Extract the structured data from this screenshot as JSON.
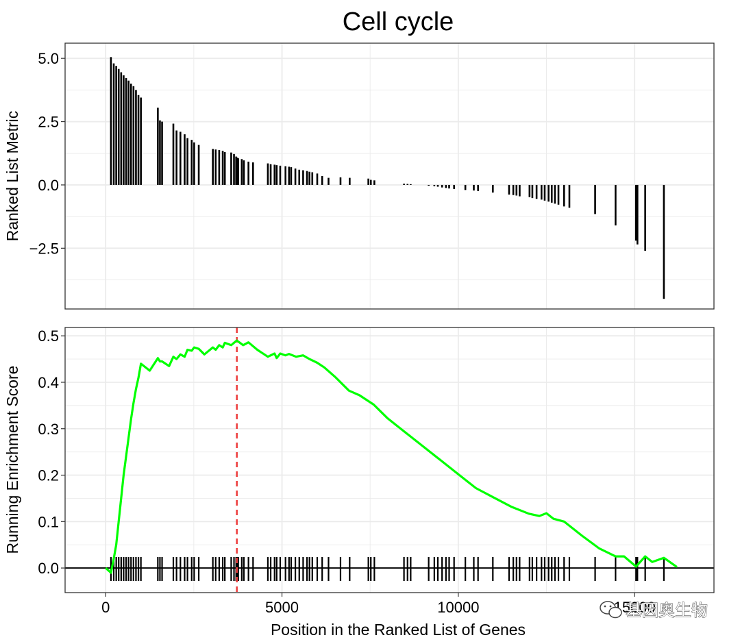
{
  "title": "Cell cycle",
  "watermark": "基因奥生物",
  "colors": {
    "running_line": "#00ff00",
    "peak_line": "#ee4040",
    "bars": "#000000",
    "grid": "#ebebeb",
    "panel_border": "#333333"
  },
  "chart_data": [
    {
      "type": "bar",
      "panel": "top",
      "title": "Cell cycle",
      "ylabel": "Ranked List Metric",
      "xlabel": "",
      "xlim": [
        -1150,
        17250
      ],
      "ylim": [
        -4.9,
        5.6
      ],
      "yticks": [
        -2.5,
        0,
        2.5,
        5
      ],
      "ytick_labels": [
        "−2.5",
        "0.0",
        "2.5",
        "5.0"
      ],
      "xgrid": [
        0,
        5000,
        10000,
        15000
      ],
      "x": [
        150,
        230,
        300,
        370,
        440,
        510,
        580,
        650,
        720,
        790,
        860,
        930,
        1000,
        1480,
        1540,
        1600,
        1920,
        2010,
        2120,
        2240,
        2320,
        2440,
        2510,
        2640,
        3040,
        3120,
        3220,
        3320,
        3380,
        3560,
        3640,
        3700,
        3730,
        3760,
        3860,
        3920,
        4050,
        4180,
        4600,
        4680,
        4790,
        4850,
        4950,
        5100,
        5200,
        5260,
        5380,
        5490,
        5600,
        5710,
        5780,
        5860,
        6000,
        6140,
        6320,
        6660,
        6920,
        7450,
        7520,
        7620,
        8460,
        8560,
        8650,
        9160,
        9320,
        9420,
        9540,
        9650,
        9740,
        9880,
        10200,
        10440,
        10560,
        10980,
        11440,
        11560,
        11650,
        11740,
        12020,
        12100,
        12220,
        12360,
        12450,
        12560,
        12650,
        12740,
        12840,
        13000,
        13150,
        13880,
        14460,
        15040,
        15080,
        15300,
        15830
      ],
      "values": [
        5.05,
        4.8,
        4.7,
        4.58,
        4.45,
        4.33,
        4.22,
        4.12,
        4.0,
        3.9,
        3.75,
        3.55,
        3.45,
        3.05,
        2.55,
        2.5,
        2.42,
        2.15,
        2.1,
        2.0,
        1.85,
        1.78,
        1.68,
        1.58,
        1.42,
        1.4,
        1.38,
        1.35,
        1.3,
        1.28,
        1.22,
        1.12,
        1.08,
        1.05,
        1.02,
        0.97,
        0.92,
        0.89,
        0.85,
        0.82,
        0.8,
        0.78,
        0.76,
        0.74,
        0.72,
        0.7,
        0.65,
        0.6,
        0.58,
        0.55,
        0.52,
        0.5,
        0.45,
        0.35,
        0.28,
        0.3,
        0.28,
        0.25,
        0.2,
        0.18,
        0.05,
        0.04,
        0.03,
        -0.03,
        -0.05,
        -0.07,
        -0.1,
        -0.12,
        -0.14,
        -0.16,
        -0.2,
        -0.22,
        -0.24,
        -0.3,
        -0.38,
        -0.4,
        -0.42,
        -0.45,
        -0.48,
        -0.52,
        -0.55,
        -0.58,
        -0.62,
        -0.66,
        -0.7,
        -0.74,
        -0.78,
        -0.85,
        -0.9,
        -1.15,
        -1.6,
        -2.2,
        -2.35,
        -2.6,
        -4.5
      ]
    },
    {
      "type": "line",
      "panel": "bottom",
      "title": "",
      "ylabel": "Running Enrichment Score",
      "xlabel": "Position in the Ranked List of Genes",
      "xlim": [
        -1150,
        17250
      ],
      "ylim": [
        -0.053,
        0.518
      ],
      "yticks": [
        0,
        0.1,
        0.2,
        0.3,
        0.4,
        0.5
      ],
      "ytick_labels": [
        "0.0",
        "0.1",
        "0.2",
        "0.3",
        "0.4",
        "0.5"
      ],
      "xticks": [
        0,
        5000,
        10000,
        15000
      ],
      "xtick_labels": [
        "0",
        "5000",
        "10000",
        "15000"
      ],
      "peak_x": 3720,
      "series": [
        {
          "name": "Running Enrichment Score",
          "x": [
            0,
            150,
            230,
            300,
            370,
            440,
            510,
            580,
            650,
            720,
            790,
            860,
            930,
            1000,
            1250,
            1480,
            1540,
            1600,
            1800,
            1920,
            2010,
            2120,
            2240,
            2320,
            2440,
            2510,
            2640,
            2800,
            3040,
            3120,
            3220,
            3320,
            3380,
            3560,
            3640,
            3720,
            3900,
            4050,
            4300,
            4600,
            4790,
            4850,
            4950,
            5100,
            5200,
            5400,
            5600,
            5780,
            5860,
            6000,
            6200,
            6500,
            6900,
            7200,
            7600,
            8000,
            8500,
            9000,
            9500,
            10000,
            10500,
            11000,
            11500,
            12000,
            12300,
            12500,
            12700,
            13000,
            13500,
            14000,
            14460,
            14700,
            15040,
            15300,
            15500,
            15830,
            16200
          ],
          "y": [
            0,
            -0.01,
            0.02,
            0.05,
            0.1,
            0.15,
            0.2,
            0.24,
            0.28,
            0.32,
            0.355,
            0.385,
            0.41,
            0.44,
            0.425,
            0.452,
            0.445,
            0.445,
            0.435,
            0.455,
            0.45,
            0.46,
            0.455,
            0.47,
            0.468,
            0.475,
            0.472,
            0.46,
            0.475,
            0.47,
            0.48,
            0.475,
            0.485,
            0.48,
            0.485,
            0.49,
            0.48,
            0.486,
            0.47,
            0.455,
            0.462,
            0.452,
            0.462,
            0.458,
            0.461,
            0.455,
            0.458,
            0.45,
            0.447,
            0.442,
            0.432,
            0.412,
            0.382,
            0.372,
            0.352,
            0.322,
            0.292,
            0.262,
            0.232,
            0.202,
            0.172,
            0.152,
            0.132,
            0.117,
            0.112,
            0.118,
            0.106,
            0.1,
            0.07,
            0.042,
            0.025,
            0.025,
            0.003,
            0.025,
            0.013,
            0.022,
            0.002
          ]
        }
      ],
      "hits": [
        150,
        230,
        300,
        370,
        440,
        510,
        580,
        650,
        720,
        790,
        860,
        930,
        1000,
        1480,
        1540,
        1600,
        1920,
        2010,
        2120,
        2240,
        2320,
        2440,
        2510,
        2640,
        3040,
        3120,
        3220,
        3320,
        3380,
        3560,
        3640,
        3700,
        3730,
        3760,
        3860,
        3920,
        4050,
        4180,
        4600,
        4680,
        4790,
        4850,
        4950,
        5100,
        5200,
        5260,
        5380,
        5490,
        5600,
        5710,
        5780,
        5860,
        6000,
        6140,
        6320,
        6660,
        6920,
        7450,
        7520,
        7620,
        8460,
        8560,
        8650,
        9160,
        9320,
        9420,
        9540,
        9650,
        9740,
        9880,
        10200,
        10440,
        10560,
        10980,
        11440,
        11560,
        11650,
        11740,
        12020,
        12100,
        12220,
        12360,
        12450,
        12560,
        12650,
        12740,
        12840,
        13000,
        13150,
        13880,
        14460,
        15040,
        15080,
        15300,
        15830
      ]
    }
  ]
}
